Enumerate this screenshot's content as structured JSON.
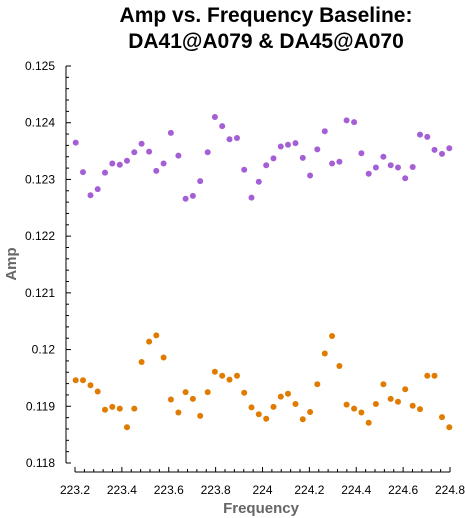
{
  "chart_data": {
    "type": "scatter",
    "title_lines": [
      "Amp vs. Frequency Baseline:",
      "DA41@A079 & DA45@A070"
    ],
    "xlabel": "Frequency",
    "ylabel": "Amp",
    "xlim": [
      223.2,
      224.8
    ],
    "ylim": [
      0.118,
      0.125
    ],
    "xticks": [
      "223.2",
      "223.4",
      "223.6",
      "223.8",
      "224",
      "224.2",
      "224.4",
      "224.6",
      "224.8"
    ],
    "yticks": [
      "0.118",
      "0.119",
      "0.12",
      "0.121",
      "0.122",
      "0.123",
      "0.124",
      "0.125"
    ],
    "grid": false,
    "series": [
      {
        "color": "#a55fd6",
        "x": [
          223.203,
          223.234,
          223.266,
          223.297,
          223.328,
          223.359,
          223.391,
          223.422,
          223.453,
          223.484,
          223.516,
          223.547,
          223.578,
          223.609,
          223.641,
          223.672,
          223.703,
          223.734,
          223.766,
          223.797,
          223.828,
          223.859,
          223.891,
          223.922,
          223.953,
          223.984,
          224.016,
          224.047,
          224.078,
          224.109,
          224.141,
          224.172,
          224.203,
          224.234,
          224.266,
          224.297,
          224.328,
          224.359,
          224.391,
          224.422,
          224.453,
          224.484,
          224.516,
          224.547,
          224.578,
          224.609,
          224.641,
          224.672,
          224.703,
          224.734,
          224.766,
          224.797
        ],
        "y": [
          0.12365,
          0.12313,
          0.12272,
          0.12283,
          0.12312,
          0.12328,
          0.12326,
          0.12333,
          0.12348,
          0.12363,
          0.12349,
          0.12315,
          0.12328,
          0.12382,
          0.12342,
          0.12266,
          0.12271,
          0.12297,
          0.12348,
          0.1241,
          0.12394,
          0.12371,
          0.12373,
          0.12317,
          0.12268,
          0.12296,
          0.12325,
          0.12337,
          0.12358,
          0.12361,
          0.12364,
          0.12338,
          0.12307,
          0.12353,
          0.12385,
          0.12328,
          0.12331,
          0.12404,
          0.12401,
          0.12346,
          0.1231,
          0.12321,
          0.1234,
          0.12325,
          0.12321,
          0.12302,
          0.12322,
          0.12379,
          0.12375,
          0.12352,
          0.12345,
          0.12355
        ]
      },
      {
        "color": "#e07b00",
        "x": [
          223.203,
          223.234,
          223.266,
          223.297,
          223.328,
          223.359,
          223.391,
          223.422,
          223.453,
          223.484,
          223.516,
          223.547,
          223.578,
          223.609,
          223.641,
          223.672,
          223.703,
          223.734,
          223.766,
          223.797,
          223.828,
          223.859,
          223.891,
          223.922,
          223.953,
          223.984,
          224.016,
          224.047,
          224.078,
          224.109,
          224.141,
          224.172,
          224.203,
          224.234,
          224.266,
          224.297,
          224.328,
          224.359,
          224.391,
          224.422,
          224.453,
          224.484,
          224.516,
          224.547,
          224.578,
          224.609,
          224.641,
          224.672,
          224.703,
          224.734,
          224.766,
          224.797
        ],
        "y": [
          0.11946,
          0.11946,
          0.11937,
          0.11926,
          0.11894,
          0.11899,
          0.11896,
          0.11863,
          0.11896,
          0.11978,
          0.12014,
          0.12025,
          0.11986,
          0.11912,
          0.11889,
          0.11925,
          0.11913,
          0.11883,
          0.11925,
          0.11961,
          0.11954,
          0.11947,
          0.11954,
          0.11924,
          0.11898,
          0.11886,
          0.11878,
          0.11899,
          0.11917,
          0.11922,
          0.11904,
          0.11877,
          0.1189,
          0.11939,
          0.11993,
          0.12024,
          0.11971,
          0.11903,
          0.11896,
          0.11889,
          0.11871,
          0.11904,
          0.11939,
          0.11913,
          0.11908,
          0.1193,
          0.11901,
          0.11895,
          0.11954,
          0.11954,
          0.11881,
          0.11863
        ]
      }
    ]
  }
}
